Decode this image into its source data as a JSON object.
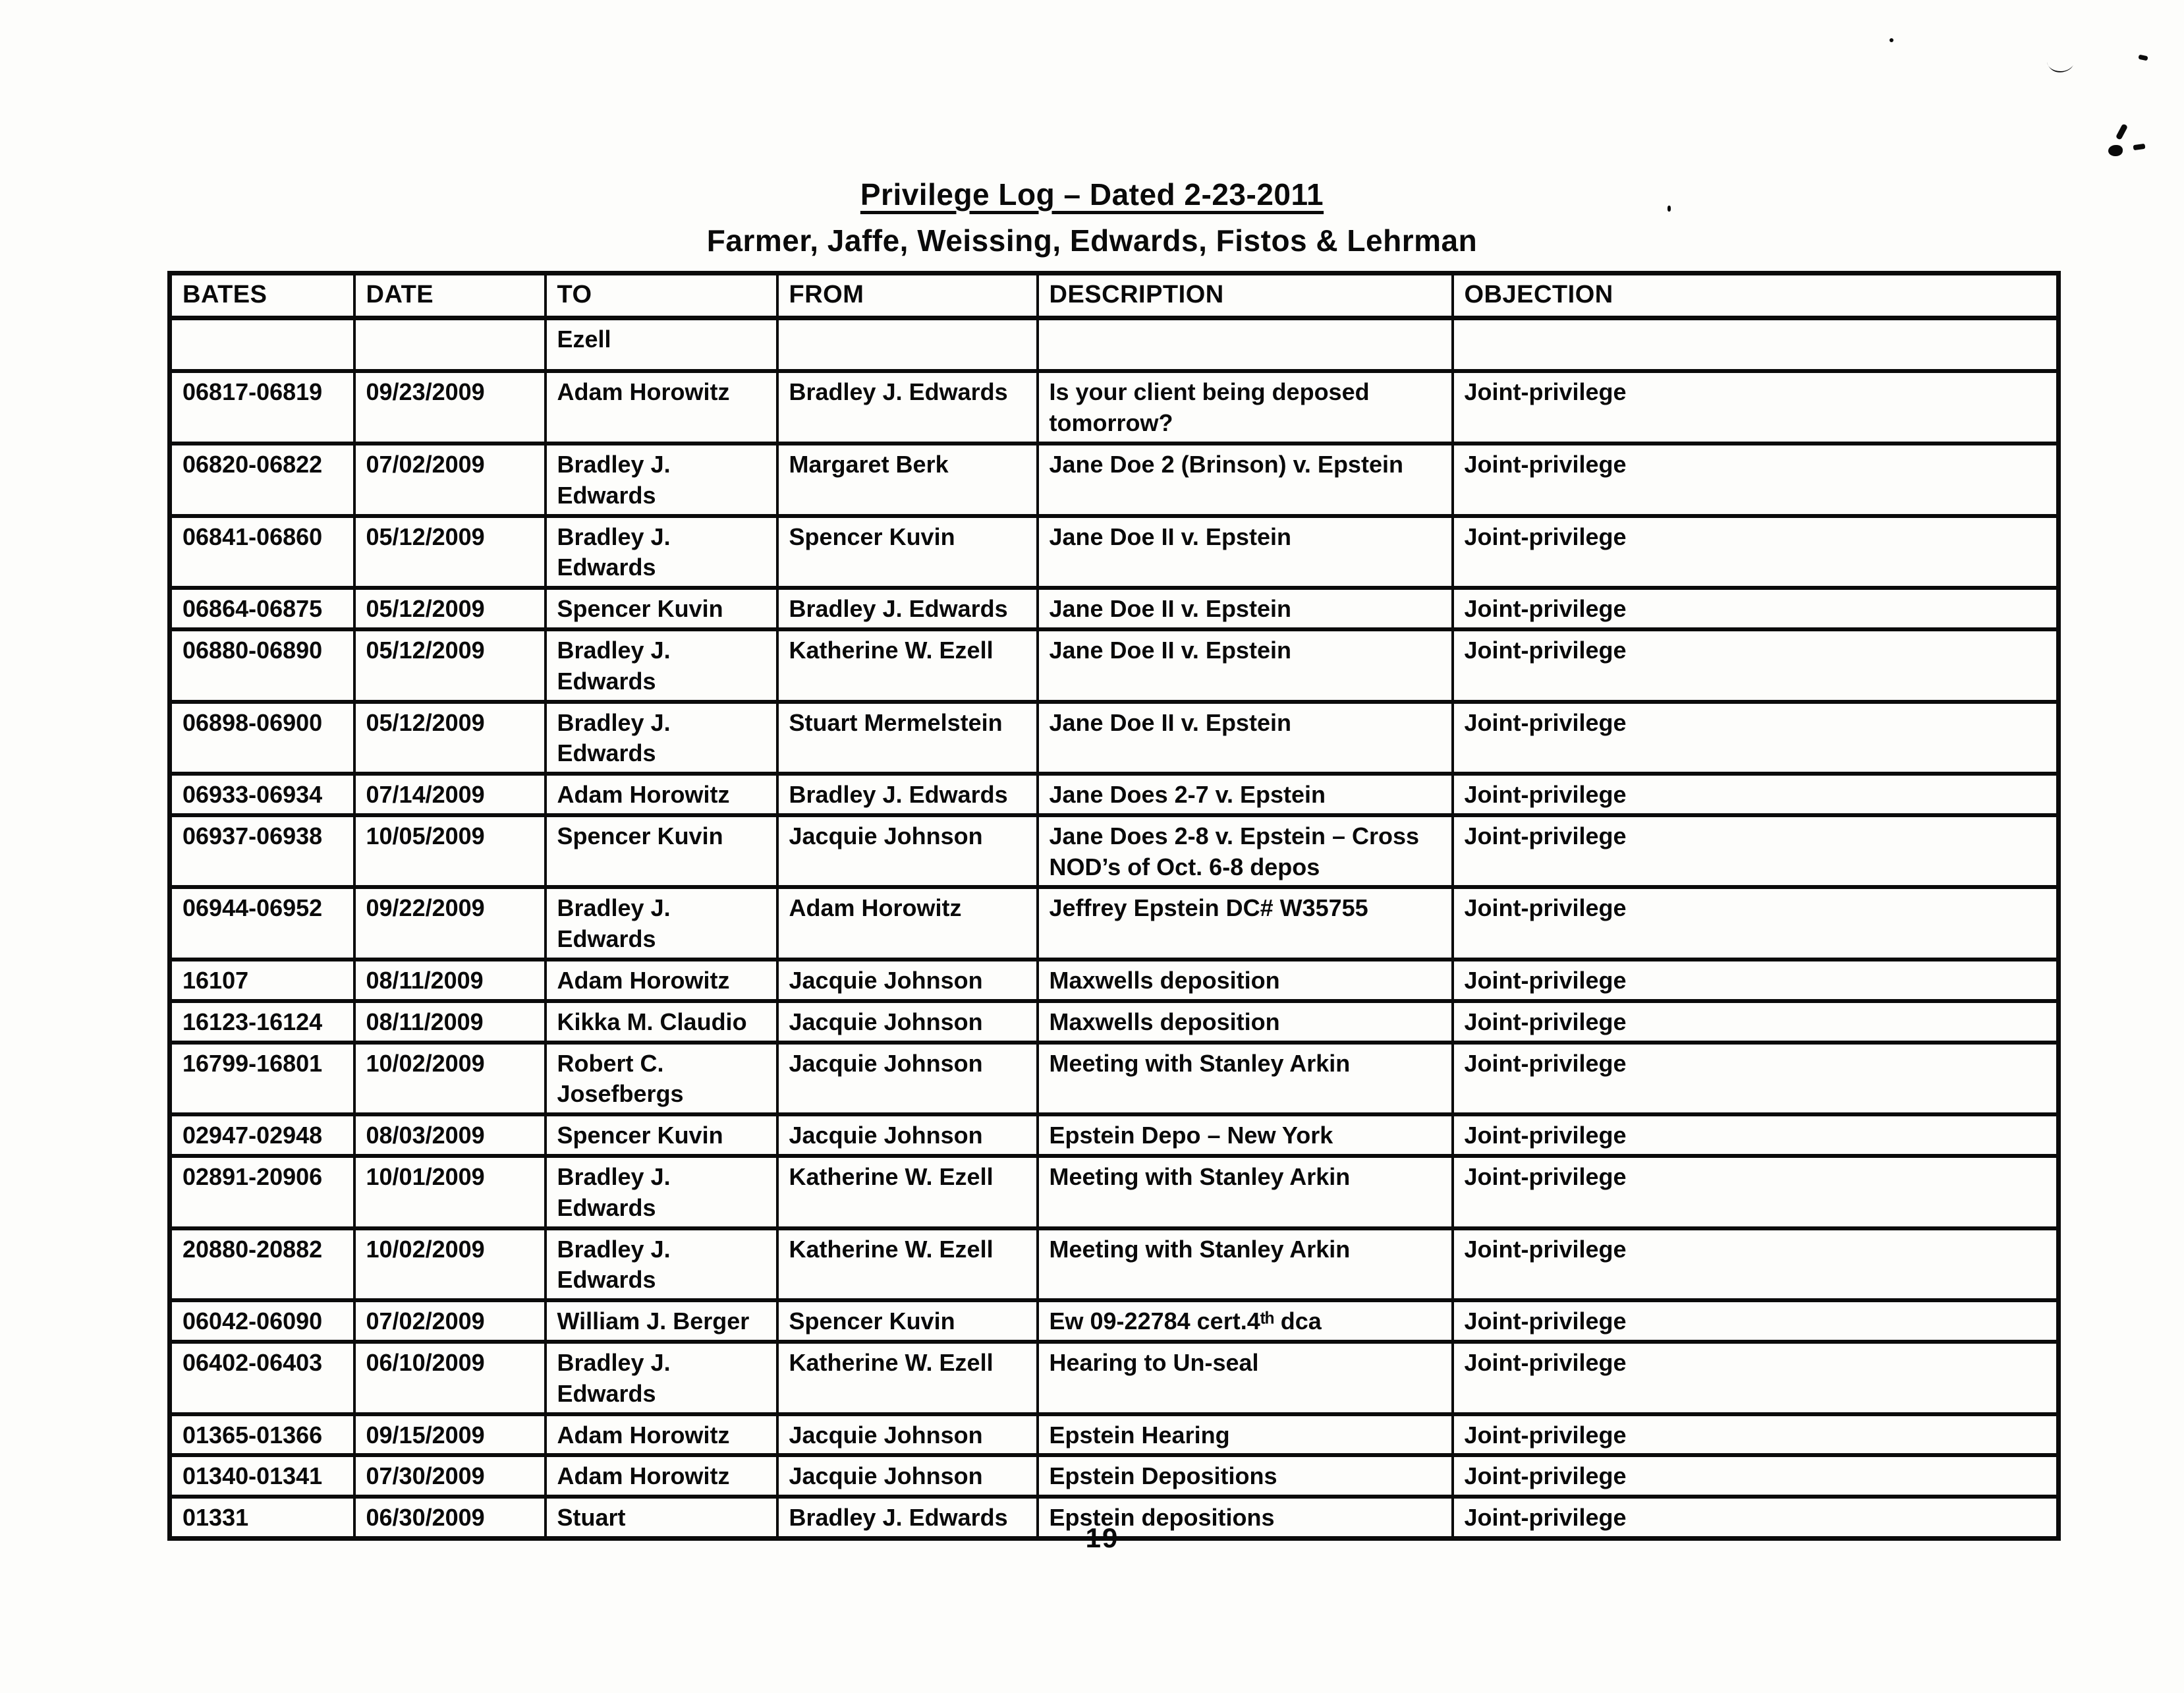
{
  "page": {
    "title": "Privilege Log – Dated 2-23-2011",
    "subtitle": "Farmer, Jaffe, Weissing, Edwards, Fistos & Lehrman",
    "page_number": "19"
  },
  "table": {
    "columns": [
      "BATES",
      "DATE",
      "TO",
      "FROM",
      "DESCRIPTION",
      "OBJECTION"
    ],
    "rows": [
      {
        "bates": "",
        "date": "",
        "to": "Ezell",
        "from": "",
        "description": "",
        "objection": ""
      },
      {
        "bates": "06817-06819",
        "date": "09/23/2009",
        "to": "Adam Horowitz",
        "from": "Bradley J. Edwards",
        "description": "Is your client being deposed tomorrow?",
        "objection": "Joint-privilege"
      },
      {
        "bates": "06820-06822",
        "date": "07/02/2009",
        "to": "Bradley J. Edwards",
        "from": "Margaret Berk",
        "description": "Jane Doe 2 (Brinson) v. Epstein",
        "objection": "Joint-privilege"
      },
      {
        "bates": "06841-06860",
        "date": "05/12/2009",
        "to": "Bradley J. Edwards",
        "from": "Spencer Kuvin",
        "description": "Jane Doe II v. Epstein",
        "objection": "Joint-privilege"
      },
      {
        "bates": "06864-06875",
        "date": "05/12/2009",
        "to": "Spencer Kuvin",
        "from": "Bradley J. Edwards",
        "description": "Jane Doe II v. Epstein",
        "objection": "Joint-privilege"
      },
      {
        "bates": "06880-06890",
        "date": "05/12/2009",
        "to": "Bradley J. Edwards",
        "from": "Katherine W. Ezell",
        "description": "Jane Doe II v. Epstein",
        "objection": "Joint-privilege"
      },
      {
        "bates": "06898-06900",
        "date": "05/12/2009",
        "to": "Bradley J. Edwards",
        "from": "Stuart Mermelstein",
        "description": "Jane Doe II v. Epstein",
        "objection": "Joint-privilege"
      },
      {
        "bates": "06933-06934",
        "date": "07/14/2009",
        "to": "Adam Horowitz",
        "from": "Bradley J. Edwards",
        "description": "Jane Does 2-7 v. Epstein",
        "objection": "Joint-privilege"
      },
      {
        "bates": "06937-06938",
        "date": "10/05/2009",
        "to": "Spencer Kuvin",
        "from": "Jacquie Johnson",
        "description": "Jane Does 2-8 v. Epstein – Cross NOD’s of Oct. 6-8 depos",
        "objection": "Joint-privilege"
      },
      {
        "bates": "06944-06952",
        "date": "09/22/2009",
        "to": "Bradley J. Edwards",
        "from": "Adam Horowitz",
        "description": "Jeffrey Epstein DC# W35755",
        "objection": "Joint-privilege"
      },
      {
        "bates": "16107",
        "date": "08/11/2009",
        "to": "Adam Horowitz",
        "from": "Jacquie Johnson",
        "description": "Maxwells deposition",
        "objection": "Joint-privilege"
      },
      {
        "bates": "16123-16124",
        "date": "08/11/2009",
        "to": "Kikka M. Claudio",
        "from": "Jacquie Johnson",
        "description": "Maxwells deposition",
        "objection": "Joint-privilege"
      },
      {
        "bates": "16799-16801",
        "date": "10/02/2009",
        "to": "Robert C. Josefbergs",
        "from": "Jacquie Johnson",
        "description": "Meeting with Stanley Arkin",
        "objection": "Joint-privilege"
      },
      {
        "bates": "02947-02948",
        "date": "08/03/2009",
        "to": "Spencer Kuvin",
        "from": "Jacquie Johnson",
        "description": "Epstein Depo – New York",
        "objection": "Joint-privilege"
      },
      {
        "bates": "02891-20906",
        "date": "10/01/2009",
        "to": "Bradley J. Edwards",
        "from": "Katherine W. Ezell",
        "description": "Meeting with Stanley Arkin",
        "objection": "Joint-privilege"
      },
      {
        "bates": "20880-20882",
        "date": "10/02/2009",
        "to": "Bradley J. Edwards",
        "from": "Katherine W. Ezell",
        "description": "Meeting with Stanley Arkin",
        "objection": "Joint-privilege"
      },
      {
        "bates": "06042-06090",
        "date": "07/02/2009",
        "to": "William J. Berger",
        "from": "Spencer Kuvin",
        "description": "Ew 09-22784 cert.4ᵗʰ dca",
        "objection": "Joint-privilege"
      },
      {
        "bates": "06402-06403",
        "date": "06/10/2009",
        "to": "Bradley J. Edwards",
        "from": "Katherine W. Ezell",
        "description": "Hearing to Un-seal",
        "objection": "Joint-privilege"
      },
      {
        "bates": "01365-01366",
        "date": "09/15/2009",
        "to": "Adam Horowitz",
        "from": "Jacquie Johnson",
        "description": "Epstein Hearing",
        "objection": "Joint-privilege"
      },
      {
        "bates": "01340-01341",
        "date": "07/30/2009",
        "to": "Adam Horowitz",
        "from": "Jacquie Johnson",
        "description": "Epstein Depositions",
        "objection": "Joint-privilege"
      },
      {
        "bates": "01331",
        "date": "06/30/2009",
        "to": "Stuart",
        "from": "Bradley J. Edwards",
        "description": "Epstein depositions",
        "objection": "Joint-privilege"
      }
    ]
  }
}
